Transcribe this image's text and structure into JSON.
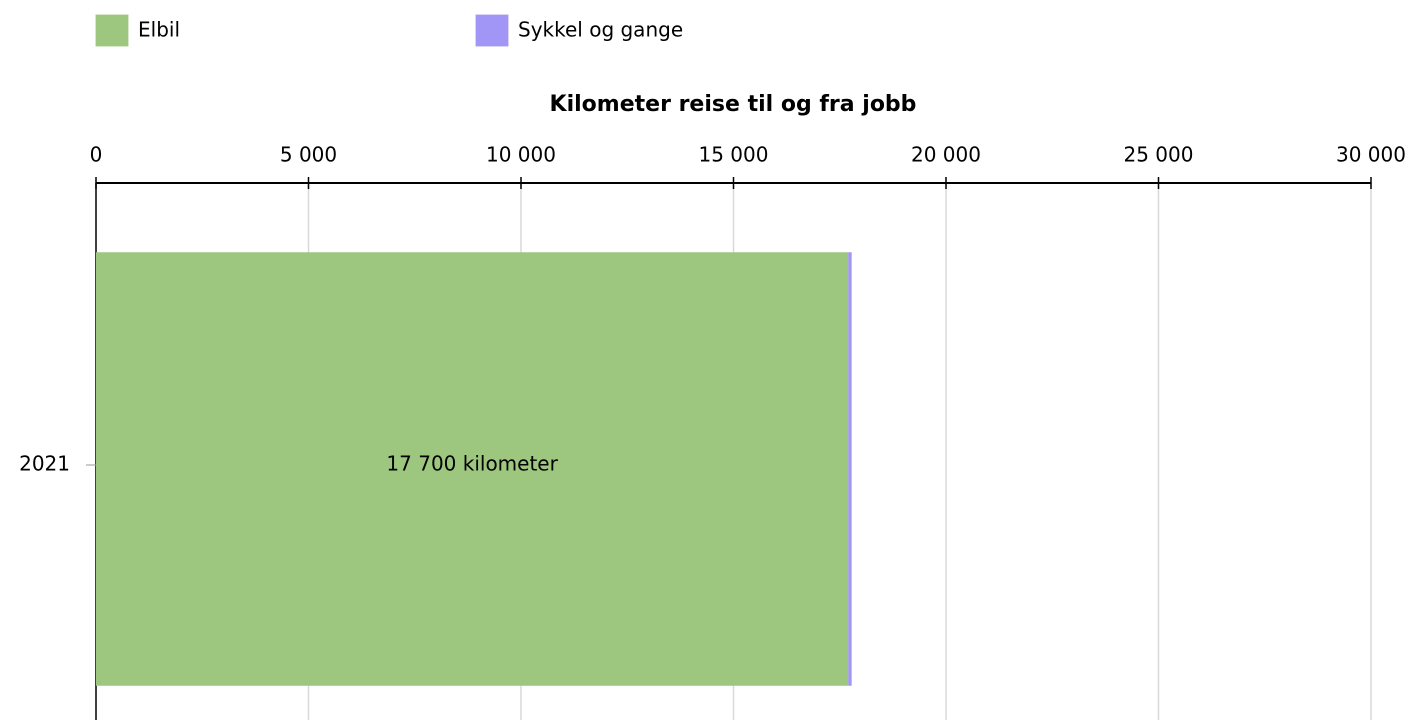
{
  "chart_data": {
    "type": "stacked_barh",
    "title": "Kilometer reise til og fra jobb",
    "categories": [
      "2021"
    ],
    "series": [
      {
        "name": "Elbil",
        "color": "#9dc67f",
        "values": [
          17700
        ],
        "value_labels": [
          "17 700 kilometer"
        ]
      },
      {
        "name": "Sykkel og gange",
        "color": "#a195f5",
        "values": [
          80
        ]
      }
    ],
    "xlim": [
      0,
      30000
    ],
    "xticks": [
      0,
      {
        "value": 5000,
        "label": "5 000"
      },
      {
        "value": 10000,
        "label": "10 000"
      },
      {
        "value": 15000,
        "label": "15 000"
      },
      {
        "value": 20000,
        "label": "20 000"
      },
      {
        "value": 25000,
        "label": "25 000"
      },
      {
        "value": 30000,
        "label": "30 000"
      }
    ],
    "grid": true,
    "legend": "top"
  }
}
